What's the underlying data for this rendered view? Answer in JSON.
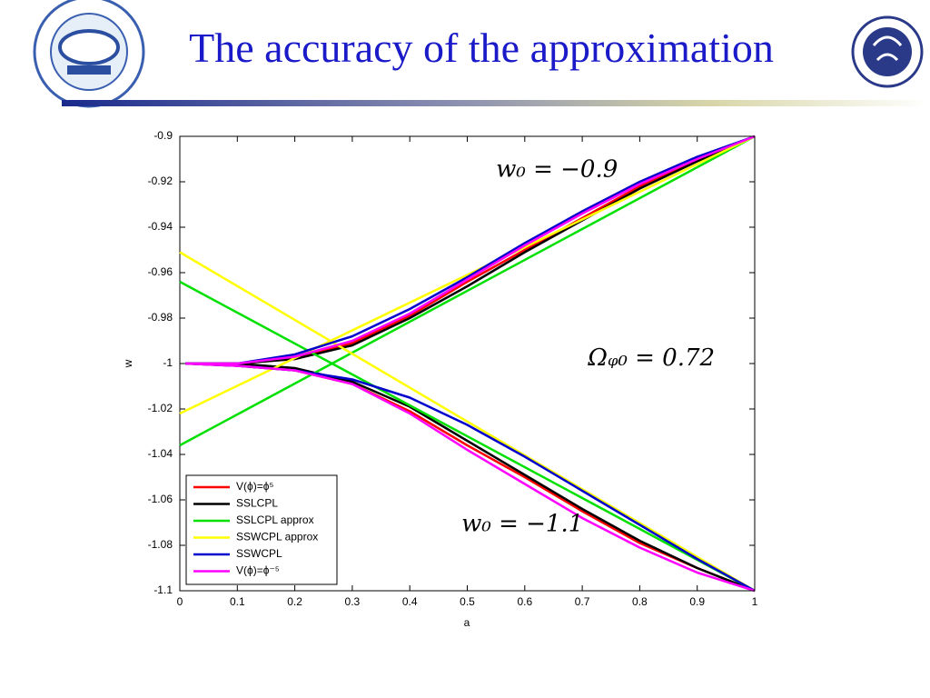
{
  "header": {
    "title": "The accuracy of the approximation"
  },
  "chart_data": {
    "type": "line",
    "xlabel": "a",
    "ylabel": "w",
    "xlim": [
      0,
      1
    ],
    "ylim": [
      -1.1,
      -0.9
    ],
    "xticks": [
      0,
      0.1,
      0.2,
      0.3,
      0.4,
      0.5,
      0.6,
      0.7,
      0.8,
      0.9,
      1
    ],
    "yticks": [
      -0.9,
      -0.92,
      -0.94,
      -0.96,
      -0.98,
      -1,
      -1.02,
      -1.04,
      -1.06,
      -1.08,
      -1.1
    ],
    "grid": false,
    "legend": "lower left",
    "annotations": [
      {
        "text": "w₀ = −0.9",
        "x": 0.55,
        "y": -0.915
      },
      {
        "text": "Ωᵩ₀ = 0.72",
        "x": 0.71,
        "y": -0.998
      },
      {
        "text": "w₀ = −1.1",
        "x": 0.49,
        "y": -1.071
      }
    ],
    "series": [
      {
        "name": "V(ϕ)=ϕ⁵",
        "color": "#ff0000",
        "x": [
          0.01,
          0.1,
          0.2,
          0.3,
          0.4,
          0.5,
          0.6,
          0.7,
          0.8,
          0.9,
          1,
          null,
          0.01,
          0.1,
          0.2,
          0.3,
          0.4,
          0.5,
          0.6,
          0.7,
          0.8,
          0.9,
          1
        ],
        "values": [
          -1,
          -1,
          -0.998,
          -0.991,
          -0.979,
          -0.964,
          -0.95,
          -0.936,
          -0.922,
          -0.91,
          -0.9,
          null,
          -1,
          -1.001,
          -1.003,
          -1.009,
          -1.021,
          -1.036,
          -1.05,
          -1.065,
          -1.079,
          -1.09,
          -1.1
        ]
      },
      {
        "name": "SSLCPL",
        "color": "#000000",
        "x": [
          0.01,
          0.1,
          0.2,
          0.3,
          0.4,
          0.5,
          0.6,
          0.7,
          0.8,
          0.9,
          1,
          null,
          0.01,
          0.1,
          0.2,
          0.3,
          0.4,
          0.5,
          0.6,
          0.7,
          0.8,
          0.9,
          1
        ],
        "values": [
          -1,
          -1,
          -0.998,
          -0.992,
          -0.98,
          -0.966,
          -0.951,
          -0.937,
          -0.923,
          -0.911,
          -0.9,
          null,
          -1,
          -1,
          -1.002,
          -1.008,
          -1.019,
          -1.034,
          -1.049,
          -1.064,
          -1.078,
          -1.09,
          -1.1
        ]
      },
      {
        "name": "SSLCPL approx",
        "color": "#00e000",
        "x": [
          0,
          1,
          null,
          0,
          1
        ],
        "values": [
          -1.036,
          -0.9,
          null,
          -0.964,
          -1.1
        ]
      },
      {
        "name": "SSWCPL approx",
        "color": "#ffff00",
        "x": [
          0,
          1,
          null,
          0,
          1
        ],
        "values": [
          -1.022,
          -0.9,
          null,
          -0.951,
          -1.1
        ]
      },
      {
        "name": "SSWCPL",
        "color": "#0000cc",
        "x": [
          0.01,
          0.1,
          0.2,
          0.3,
          0.4,
          0.5,
          0.6,
          0.7,
          0.8,
          0.9,
          1,
          null,
          0.01,
          0.1,
          0.2,
          0.3,
          0.4,
          0.5,
          0.6,
          0.7,
          0.8,
          0.9,
          1
        ],
        "values": [
          -1,
          -1,
          -0.996,
          -0.988,
          -0.976,
          -0.962,
          -0.947,
          -0.933,
          -0.92,
          -0.909,
          -0.9,
          null,
          -1,
          -1.001,
          -1.003,
          -1.007,
          -1.015,
          -1.027,
          -1.041,
          -1.056,
          -1.071,
          -1.086,
          -1.1
        ]
      },
      {
        "name": "V(ϕ)=ϕ⁻⁵",
        "color": "#ff00ff",
        "x": [
          0.01,
          0.1,
          0.2,
          0.3,
          0.4,
          0.5,
          0.6,
          0.7,
          0.8,
          0.9,
          1,
          null,
          0.01,
          0.1,
          0.2,
          0.3,
          0.4,
          0.5,
          0.6,
          0.7,
          0.8,
          0.9,
          1
        ],
        "values": [
          -1,
          -1,
          -0.997,
          -0.99,
          -0.978,
          -0.963,
          -0.948,
          -0.934,
          -0.921,
          -0.91,
          -0.9,
          null,
          -1,
          -1.001,
          -1.003,
          -1.009,
          -1.022,
          -1.038,
          -1.053,
          -1.068,
          -1.081,
          -1.092,
          -1.1
        ]
      }
    ]
  }
}
